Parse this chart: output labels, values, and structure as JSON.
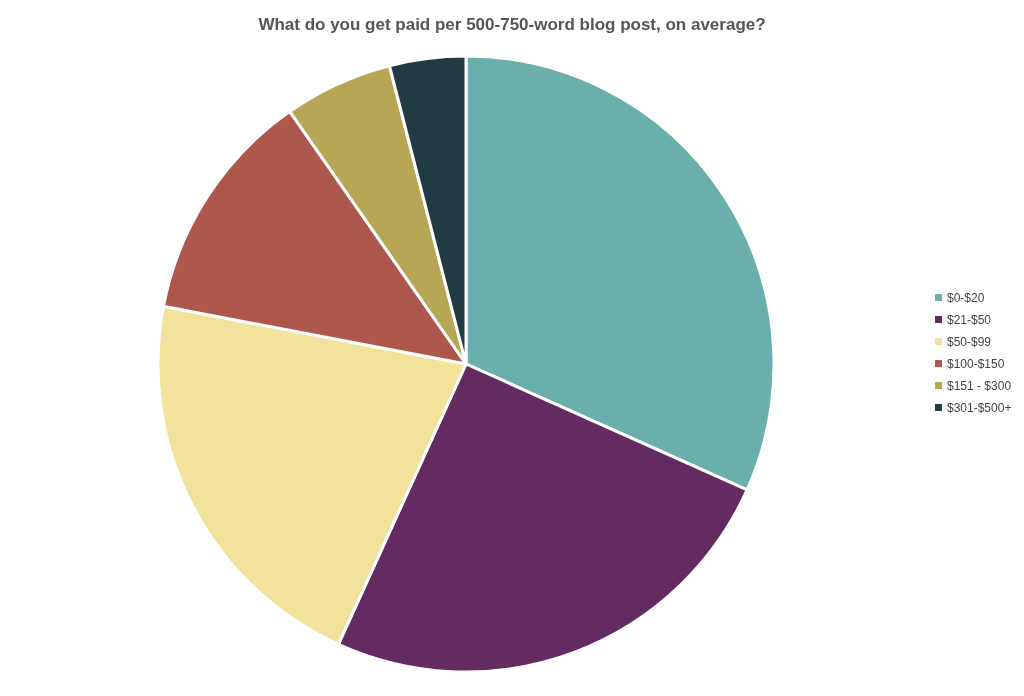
{
  "chart_data": {
    "type": "pie",
    "title": "What do you get paid per 500-750-word blog post, on average?",
    "categories": [
      "$0-$20",
      "$21-$50",
      "$50-$99",
      "$100-$150",
      "$151 - $300",
      "$301-$500+"
    ],
    "values": [
      31.7,
      25.1,
      21.2,
      12.3,
      5.7,
      4.0
    ],
    "colors": [
      "#6aafac",
      "#642a62",
      "#f3e29b",
      "#ae574c",
      "#b8a657",
      "#213b42"
    ],
    "legend": "right"
  }
}
